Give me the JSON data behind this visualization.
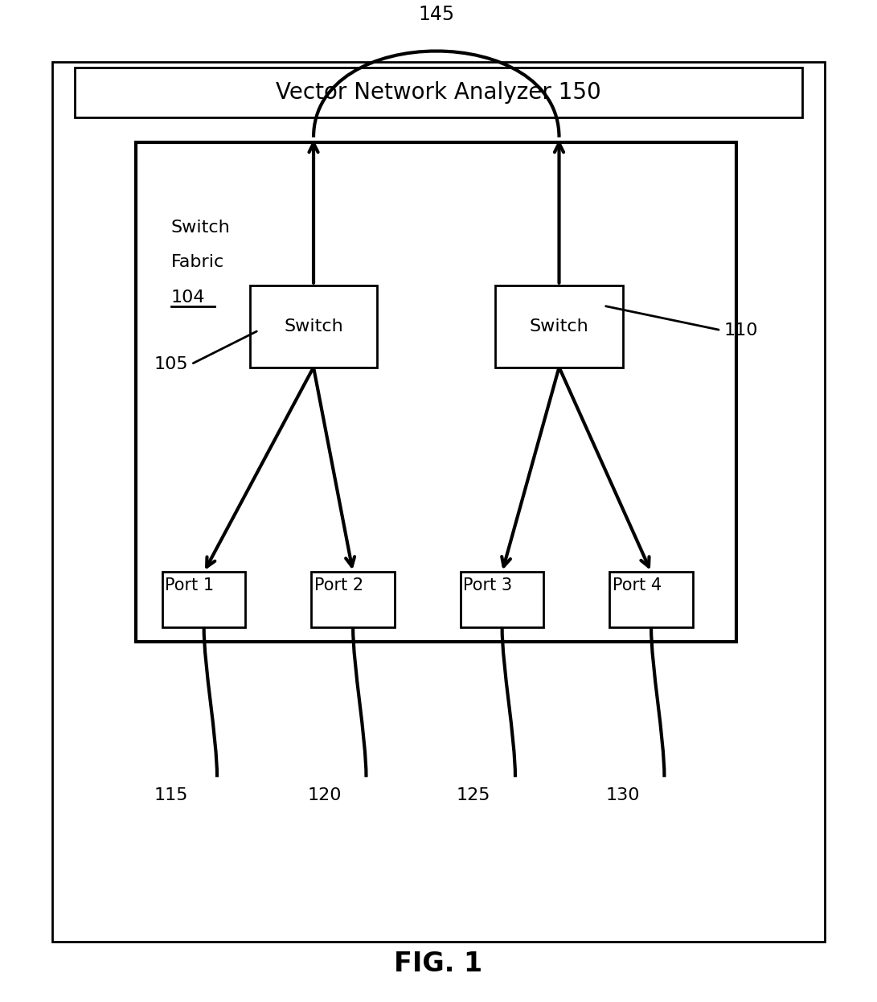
{
  "bg_color": "#ffffff",
  "vna_label_text": "Vector Network Analyzer 150",
  "switch_fabric_label_line1": "Switch",
  "switch_fabric_label_line2": "Fabric",
  "switch_fabric_number": "104",
  "switch1_label": "Switch",
  "switch2_label": "Switch",
  "port_labels": [
    "Port 1",
    "Port 2",
    "Port 3",
    "Port 4"
  ],
  "port_numbers": [
    "115",
    "120",
    "125",
    "130"
  ],
  "label_145": "145",
  "label_105": "105",
  "label_110": "110",
  "fig_label": "FIG. 1",
  "line_color": "#000000",
  "line_width": 2.0,
  "font_size_vna": 20,
  "font_size_switch": 16,
  "font_size_port": 15,
  "font_size_number": 16,
  "font_size_fig": 24
}
